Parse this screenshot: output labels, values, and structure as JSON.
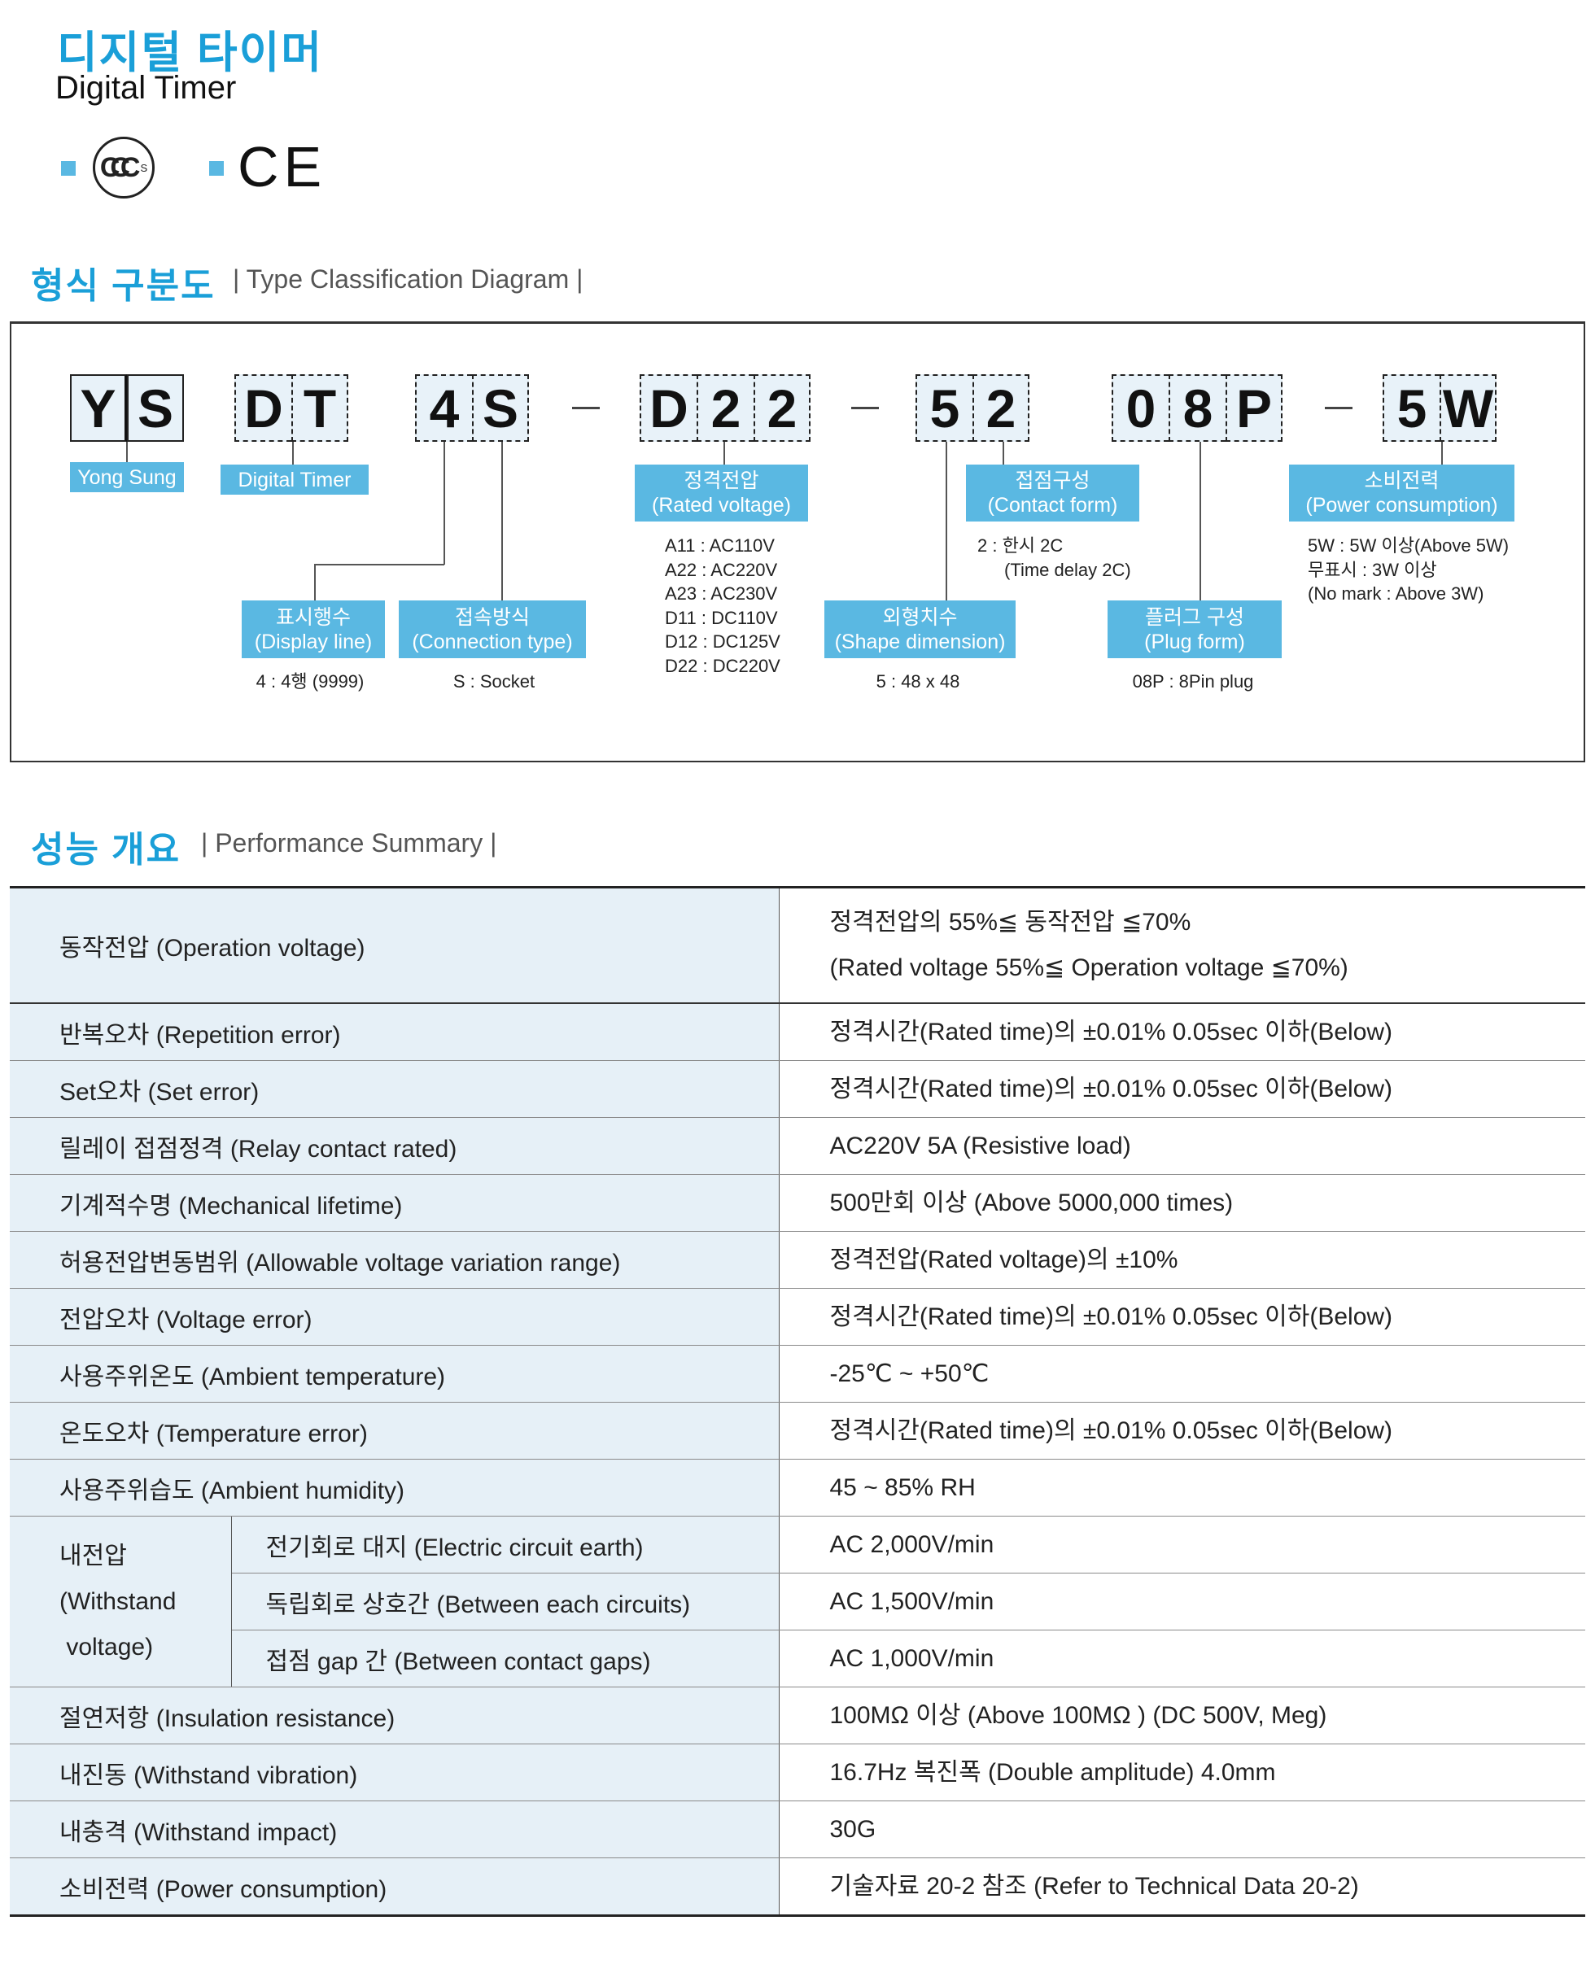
{
  "header": {
    "title_ko": "디지털 타이머",
    "title_en": "Digital Timer"
  },
  "certifications": [
    {
      "icon": "ccc-mark-icon",
      "text": "CCC",
      "sub": "S"
    },
    {
      "icon": "ce-mark-icon",
      "text": "CE"
    }
  ],
  "colors": {
    "accent": "#1a9fd8",
    "label_bg": "#5ab8e2",
    "cell_bg": "#e8f2f9",
    "table_key_bg": "#e6f0f7"
  },
  "type_section": {
    "title_ko": "형식 구분도",
    "title_en": "| Type Classification Diagram |"
  },
  "diagram": {
    "groups": [
      {
        "chars": [
          "Y",
          "S"
        ],
        "label": [
          "Yong Sung"
        ]
      },
      {
        "chars": [
          "D",
          "T"
        ],
        "label": [
          "Digital Timer"
        ]
      },
      {
        "chars": [
          "4",
          "S"
        ]
      },
      {
        "chars": [
          "D",
          "2",
          "2"
        ],
        "label": [
          "정격전압",
          "(Rated voltage)"
        ]
      },
      {
        "chars": [
          "5",
          "2"
        ]
      },
      {
        "chars": [
          "0",
          "8",
          "P"
        ]
      },
      {
        "chars": [
          "5",
          "W"
        ],
        "label": [
          "소비전력",
          "(Power consumption)"
        ]
      }
    ],
    "separator": "–",
    "lower_labels": {
      "display_line": [
        "표시행수",
        "(Display line)"
      ],
      "connection_type": [
        "접속방식",
        "(Connection type)"
      ],
      "contact_form": [
        "접점구성",
        "(Contact form)"
      ],
      "shape_dimension": [
        "외형치수",
        "(Shape dimension)"
      ],
      "plug_form": [
        "플러그 구성",
        "(Plug form)"
      ]
    },
    "notes": {
      "rated_voltage": [
        "A11 : AC110V",
        "A22 : AC220V",
        "A23 : AC230V",
        "D11 : DC110V",
        "D12 : DC125V",
        "D22 : DC220V"
      ],
      "contact_form": [
        "2 : 한시 2C",
        "(Time delay 2C)"
      ],
      "power": [
        "5W : 5W 이상(Above 5W)",
        "무표시 : 3W 이상",
        "(No mark : Above 3W)"
      ],
      "display_line": "4 : 4행 (9999)",
      "connection_type": "S : Socket",
      "shape_dimension": "5 : 48 x 48",
      "plug_form": "08P : 8Pin plug"
    }
  },
  "perf_section": {
    "title_ko": "성능 개요",
    "title_en": "| Performance Summary |"
  },
  "performance": {
    "rows": [
      {
        "key": "동작전압 (Operation voltage)",
        "value": [
          "정격전압의 55%≦ 동작전압 ≦70%",
          "(Rated voltage 55%≦ Operation voltage ≦70%)"
        ]
      },
      {
        "key": "반복오차 (Repetition error)",
        "value": [
          "정격시간(Rated time)의 ±0.01% 0.05sec 이하(Below)"
        ]
      },
      {
        "key": "Set오차 (Set error)",
        "value": [
          "정격시간(Rated time)의 ±0.01% 0.05sec 이하(Below)"
        ]
      },
      {
        "key": "릴레이 접점정격 (Relay contact rated)",
        "value": [
          "AC220V 5A (Resistive load)"
        ]
      },
      {
        "key": "기계적수명 (Mechanical lifetime)",
        "value": [
          "500만회 이상 (Above 5000,000 times)"
        ]
      },
      {
        "key": "허용전압변동범위 (Allowable voltage variation range)",
        "value": [
          "정격전압(Rated voltage)의 ±10%"
        ]
      },
      {
        "key": "전압오차 (Voltage error)",
        "value": [
          "정격시간(Rated time)의 ±0.01% 0.05sec 이하(Below)"
        ]
      },
      {
        "key": "사용주위온도 (Ambient temperature)",
        "value": [
          "-25℃ ~ +50℃"
        ]
      },
      {
        "key": "온도오차 (Temperature error)",
        "value": [
          "정격시간(Rated time)의 ±0.01% 0.05sec 이하(Below)"
        ]
      },
      {
        "key": "사용주위습도 (Ambient humidity)",
        "value": [
          "45 ~ 85% RH"
        ]
      },
      {
        "group": [
          "내전압",
          "(Withstand",
          " voltage)"
        ],
        "sub": [
          {
            "key": "전기회로 대지 (Electric circuit earth)",
            "value": [
              "AC 2,000V/min"
            ]
          },
          {
            "key": "독립회로 상호간 (Between each circuits)",
            "value": [
              "AC 1,500V/min"
            ]
          },
          {
            "key": "접점 gap 간 (Between contact gaps)",
            "value": [
              "AC 1,000V/min"
            ]
          }
        ]
      },
      {
        "key": "절연저항 (Insulation resistance)",
        "value": [
          "100MΩ 이상 (Above 100MΩ ) (DC 500V, Meg)"
        ]
      },
      {
        "key": "내진동 (Withstand vibration)",
        "value": [
          "16.7Hz 복진폭 (Double amplitude) 4.0mm"
        ]
      },
      {
        "key": "내충격 (Withstand impact)",
        "value": [
          "30G"
        ]
      },
      {
        "key": "소비전력 (Power consumption)",
        "value": [
          "기술자료 20-2 참조 (Refer to Technical Data 20-2)"
        ]
      }
    ]
  }
}
